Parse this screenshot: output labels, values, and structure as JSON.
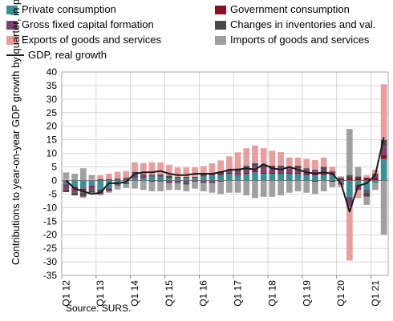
{
  "chart_data": {
    "type": "bar",
    "subtype": "stacked-bar-with-line",
    "ylabel": "Contributions to year-on-year GDP growth by quarter, in p.p.",
    "ylim": [
      -35,
      40
    ],
    "yticks": [
      -35,
      -30,
      -25,
      -20,
      -15,
      -10,
      -5,
      0,
      5,
      10,
      15,
      20,
      25,
      30,
      35,
      40
    ],
    "xtick_labels": [
      "Q1 12",
      "Q1 13",
      "Q1 14",
      "Q1 15",
      "Q1 16",
      "Q1 17",
      "Q1 18",
      "Q1 19",
      "Q1 20",
      "Q1 21"
    ],
    "grid": true,
    "legend_placement": "top",
    "source": "Source: SURS.",
    "categories": [
      "Q1 12",
      "Q2 12",
      "Q3 12",
      "Q4 12",
      "Q1 13",
      "Q2 13",
      "Q3 13",
      "Q4 13",
      "Q1 14",
      "Q2 14",
      "Q3 14",
      "Q4 14",
      "Q1 15",
      "Q2 15",
      "Q3 15",
      "Q4 15",
      "Q1 16",
      "Q2 16",
      "Q3 16",
      "Q4 16",
      "Q1 17",
      "Q2 17",
      "Q3 17",
      "Q4 17",
      "Q1 18",
      "Q2 18",
      "Q3 18",
      "Q4 18",
      "Q1 19",
      "Q2 19",
      "Q3 19",
      "Q4 19",
      "Q1 20",
      "Q2 20",
      "Q3 20",
      "Q4 20",
      "Q1 21",
      "Q2 21"
    ],
    "series": [
      {
        "name": "Private consumption",
        "color": "#3c8f96",
        "values": [
          -1.5,
          -2.5,
          -3.0,
          -2.0,
          -3.5,
          -3.0,
          -1.5,
          -1.0,
          1.0,
          1.0,
          1.5,
          1.5,
          1.0,
          1.0,
          1.0,
          1.0,
          1.5,
          2.0,
          2.0,
          2.5,
          2.0,
          2.5,
          3.0,
          2.5,
          2.5,
          2.5,
          2.5,
          2.5,
          2.0,
          2.0,
          2.0,
          2.0,
          -1.0,
          -6.0,
          -1.5,
          -3.5,
          -1.0,
          8.0
        ]
      },
      {
        "name": "Government consumption",
        "color": "#8a0f24",
        "values": [
          -0.3,
          -0.5,
          -0.5,
          -0.5,
          -0.5,
          -0.5,
          -0.3,
          -0.3,
          0.2,
          0.2,
          0.2,
          0.2,
          0.3,
          0.3,
          0.3,
          0.3,
          0.3,
          0.3,
          0.4,
          0.4,
          0.4,
          0.4,
          0.4,
          0.4,
          0.5,
          0.5,
          0.5,
          0.5,
          0.5,
          0.5,
          0.5,
          0.5,
          0.5,
          1.0,
          1.0,
          1.0,
          1.0,
          1.5
        ]
      },
      {
        "name": "Gross fixed capital formation",
        "color": "#7a4470",
        "values": [
          -1.5,
          -1.5,
          -1.0,
          -1.0,
          -1.0,
          -0.5,
          0.2,
          0.5,
          1.5,
          1.0,
          0.5,
          -0.5,
          -1.0,
          -1.0,
          -1.0,
          -0.5,
          -1.0,
          -1.0,
          -0.5,
          0.5,
          1.0,
          1.5,
          2.0,
          2.0,
          2.0,
          2.0,
          1.5,
          1.5,
          1.5,
          1.5,
          1.5,
          1.0,
          -0.5,
          -3.5,
          -2.0,
          -1.0,
          1.0,
          3.5
        ]
      },
      {
        "name": "Changes in inventories and val.",
        "color": "#4a4a4a",
        "values": [
          -1.0,
          -1.0,
          -1.5,
          -1.0,
          0.5,
          0.5,
          0.5,
          0.5,
          0.5,
          0.2,
          -0.5,
          0.5,
          0.5,
          0.0,
          -0.5,
          0.0,
          0.5,
          0.5,
          1.0,
          0.5,
          1.0,
          1.0,
          1.0,
          1.0,
          0.5,
          0.5,
          0.5,
          1.0,
          0.5,
          -0.5,
          1.0,
          -0.5,
          0.5,
          1.0,
          0.5,
          -1.5,
          0.5,
          2.0
        ]
      },
      {
        "name": "Exports of goods and services",
        "color": "#e79e9e",
        "values": [
          0.5,
          0.0,
          -0.5,
          0.5,
          1.5,
          2.0,
          2.5,
          2.5,
          3.5,
          4.0,
          4.5,
          4.5,
          4.0,
          3.5,
          3.5,
          3.5,
          3.0,
          3.5,
          4.0,
          5.0,
          6.0,
          6.5,
          6.5,
          6.0,
          5.5,
          5.0,
          3.5,
          3.0,
          3.5,
          3.5,
          3.5,
          1.5,
          -1.0,
          -20.0,
          -3.0,
          1.0,
          1.5,
          20.5
        ]
      },
      {
        "name": "Imports of goods and services",
        "color": "#a0a0a0",
        "values": [
          2.5,
          2.5,
          4.5,
          1.5,
          -0.5,
          -0.5,
          -1.5,
          -1.5,
          -3.0,
          -3.5,
          -3.5,
          -3.5,
          -2.5,
          -2.5,
          -2.5,
          -2.5,
          -3.0,
          -3.5,
          -4.5,
          -4.5,
          -4.5,
          -5.5,
          -6.5,
          -6.0,
          -6.0,
          -5.5,
          -4.5,
          -4.0,
          -4.5,
          -4.5,
          -4.0,
          -2.0,
          0.5,
          17.0,
          3.5,
          -3.0,
          -2.5,
          -20.0
        ]
      }
    ],
    "line_series": {
      "name": "GDP, real growth",
      "color": "#1a1a1a",
      "values": [
        0.0,
        -3.0,
        -4.0,
        -5.0,
        -4.5,
        -1.0,
        -1.0,
        -0.5,
        2.5,
        3.0,
        3.0,
        3.5,
        2.5,
        2.0,
        2.0,
        2.5,
        2.5,
        2.5,
        3.0,
        4.0,
        4.0,
        4.5,
        4.0,
        6.0,
        4.5,
        4.0,
        5.0,
        4.0,
        3.0,
        2.5,
        3.0,
        2.5,
        -1.0,
        -11.5,
        -2.0,
        -1.0,
        2.0,
        16.0
      ]
    }
  }
}
